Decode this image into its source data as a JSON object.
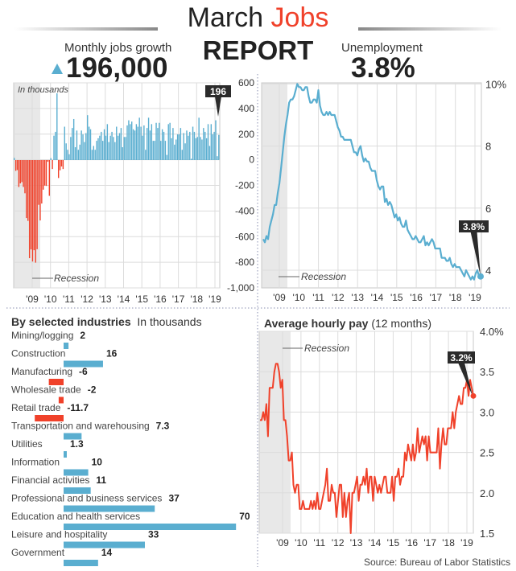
{
  "header": {
    "title_part1": "March",
    "title_part2": "Jobs",
    "title_line2": "REPORT"
  },
  "jobs_headline": {
    "label": "Monthly jobs growth",
    "value": "196,000",
    "trend_icon": "up-triangle-icon"
  },
  "unemployment_headline": {
    "label": "Unemployment",
    "value": "3.8%"
  },
  "industries_title": {
    "bold": "By selected industries",
    "light": "In thousands"
  },
  "pay_title": {
    "bold": "Average hourly pay",
    "light": "(12 months)"
  },
  "source": "Source: Bureau of Labor Statistics",
  "colors": {
    "positive": "#5aaed0",
    "negative": "#f0412a",
    "recession_shade": "#e8e8e8",
    "callout": "#2b2b2b",
    "title_accent": "#f0412a"
  },
  "chart_data": [
    {
      "id": "jobs",
      "type": "bar",
      "note": "In thousands",
      "recession_label": "Recession",
      "ylim": [
        -1000,
        600
      ],
      "yticks": [
        "600",
        "400",
        "200",
        "0",
        "-200",
        "-400",
        "-600",
        "-800",
        "-1,000"
      ],
      "xticks": [
        "'09",
        "'10",
        "'11",
        "'12",
        "'13",
        "'14",
        "'15",
        "'16",
        "'17",
        "'18",
        "'19"
      ],
      "start": "2008-01",
      "frequency": "monthly",
      "callout": "196",
      "values": [
        17,
        -84,
        -78,
        -210,
        -182,
        -172,
        -210,
        -259,
        -452,
        -474,
        -765,
        -697,
        -791,
        -703,
        -800,
        -695,
        -349,
        -471,
        -339,
        -231,
        -199,
        -202,
        -13,
        -279,
        15,
        -70,
        190,
        220,
        520,
        -140,
        -80,
        -50,
        -70,
        260,
        130,
        80,
        45,
        180,
        250,
        320,
        100,
        230,
        80,
        120,
        230,
        200,
        140,
        210,
        350,
        260,
        240,
        80,
        110,
        80,
        150,
        170,
        190,
        220,
        150,
        240,
        190,
        280,
        140,
        190,
        220,
        180,
        140,
        260,
        190,
        210,
        250,
        100,
        180,
        180,
        270,
        310,
        280,
        300,
        240,
        230,
        280,
        260,
        330,
        260,
        190,
        270,
        80,
        250,
        330,
        230,
        280,
        150,
        150,
        290,
        250,
        290,
        150,
        240,
        220,
        150,
        40,
        280,
        290,
        170,
        250,
        120,
        160,
        200,
        200,
        250,
        80,
        210,
        130,
        230,
        190,
        220,
        10,
        260,
        220,
        170,
        180,
        330,
        180,
        160,
        250,
        220,
        170,
        280,
        110,
        280,
        200,
        220,
        310,
        30,
        196
      ]
    },
    {
      "id": "unemployment",
      "type": "line",
      "recession_label": "Recession",
      "ylim": [
        3.4,
        10
      ],
      "yticks": [
        {
          "v": 10,
          "label": "10%"
        },
        {
          "v": 8,
          "label": "8"
        },
        {
          "v": 6,
          "label": "6"
        },
        {
          "v": 4,
          "label": "4"
        }
      ],
      "xticks": [
        "'09",
        "'10",
        "'11",
        "'12",
        "'13",
        "'14",
        "'15",
        "'16",
        "'17",
        "'18",
        "'19"
      ],
      "start": "2008-01",
      "frequency": "monthly",
      "callout": "3.8%",
      "values": [
        5.0,
        4.9,
        5.1,
        5.0,
        5.4,
        5.6,
        5.8,
        6.1,
        6.1,
        6.5,
        6.8,
        7.3,
        7.8,
        8.3,
        8.7,
        9.0,
        9.4,
        9.5,
        9.5,
        9.6,
        9.8,
        10.0,
        9.9,
        9.9,
        9.8,
        9.8,
        9.9,
        9.9,
        9.6,
        9.4,
        9.4,
        9.5,
        9.5,
        9.4,
        9.8,
        9.3,
        9.1,
        9.0,
        9.0,
        9.1,
        9.0,
        9.1,
        9.0,
        9.0,
        9.0,
        8.8,
        8.6,
        8.5,
        8.3,
        8.3,
        8.2,
        8.2,
        8.2,
        8.2,
        8.2,
        8.0,
        7.8,
        7.8,
        7.7,
        7.9,
        8.0,
        7.7,
        7.5,
        7.6,
        7.5,
        7.5,
        7.3,
        7.2,
        7.2,
        7.2,
        6.9,
        6.7,
        6.6,
        6.7,
        6.7,
        6.2,
        6.3,
        6.1,
        6.2,
        6.1,
        5.9,
        5.7,
        5.8,
        5.6,
        5.7,
        5.5,
        5.4,
        5.4,
        5.6,
        5.3,
        5.2,
        5.1,
        5.0,
        5.0,
        5.1,
        5.0,
        4.9,
        4.9,
        5.0,
        5.1,
        4.8,
        4.9,
        4.8,
        4.9,
        5.0,
        4.9,
        4.7,
        4.7,
        4.7,
        4.7,
        4.4,
        4.4,
        4.4,
        4.3,
        4.3,
        4.4,
        4.2,
        4.1,
        4.2,
        4.1,
        4.1,
        4.1,
        4.0,
        3.9,
        3.8,
        4.0,
        3.9,
        3.8,
        3.7,
        3.8,
        3.7,
        3.9,
        4.0,
        3.8,
        3.8
      ]
    },
    {
      "id": "industries",
      "type": "bar",
      "orientation": "horizontal",
      "categories": [
        "Mining/logging",
        "Construction",
        "Manufacturing",
        "Wholesale trade",
        "Retail trade",
        "Transportation and warehousing",
        "Utilities",
        "Information",
        "Financial activities",
        "Professional and business services",
        "Education and health services",
        "Leisure and hospitality",
        "Government"
      ],
      "values": [
        2,
        16,
        -6,
        -2,
        -11.7,
        7.3,
        1.3,
        10,
        11,
        37,
        70,
        33,
        14
      ],
      "labels": [
        "2",
        "16",
        "-6",
        "-2",
        "-11.7",
        "7.3",
        "1.3",
        "10",
        "11",
        "37",
        "70",
        "33",
        "14"
      ]
    },
    {
      "id": "hourly_pay",
      "type": "line",
      "recession_label": "Recession",
      "ylim": [
        1.5,
        4.0
      ],
      "yticks": [
        {
          "v": 4.0,
          "label": "4.0%"
        },
        {
          "v": 3.5,
          "label": "3.5"
        },
        {
          "v": 3.0,
          "label": "3.0"
        },
        {
          "v": 2.5,
          "label": "2.5"
        },
        {
          "v": 2.0,
          "label": "2.0"
        },
        {
          "v": 1.5,
          "label": "1.5"
        }
      ],
      "xticks": [
        "'09",
        "'10",
        "'11",
        "'12",
        "'13",
        "'14",
        "'15",
        "'16",
        "'17",
        "'18",
        "'19"
      ],
      "start": "2008-01",
      "frequency": "monthly",
      "callout": "3.2%",
      "values": [
        2.9,
        2.9,
        3.0,
        2.9,
        3.1,
        2.7,
        3.3,
        3.3,
        3.3,
        3.5,
        3.6,
        3.6,
        3.5,
        3.3,
        3.4,
        2.9,
        2.9,
        2.7,
        2.4,
        2.4,
        2.5,
        2.1,
        2.0,
        2.1,
        2.1,
        1.8,
        1.8,
        1.9,
        1.8,
        1.8,
        1.8,
        1.8,
        1.9,
        1.8,
        1.9,
        1.8,
        2.0,
        1.8,
        1.8,
        1.9,
        2.0,
        2.1,
        2.3,
        1.9,
        1.9,
        2.1,
        2.0,
        2.0,
        1.7,
        1.9,
        2.1,
        2.1,
        1.7,
        2.0,
        1.7,
        1.9,
        2.0,
        1.5,
        2.0,
        2.0,
        2.1,
        2.2,
        1.9,
        2.1,
        2.1,
        2.2,
        2.1,
        2.3,
        2.0,
        2.2,
        2.2,
        1.9,
        2.2,
        2.1,
        2.0,
        2.1,
        2.0,
        2.1,
        2.2,
        2.2,
        2.0,
        2.0,
        2.0,
        2.2,
        1.9,
        2.2,
        2.2,
        2.3,
        2.1,
        2.2,
        2.2,
        2.5,
        2.4,
        2.6,
        2.5,
        2.4,
        2.6,
        2.4,
        2.5,
        2.8,
        2.5,
        2.6,
        2.7,
        2.6,
        2.7,
        2.4,
        2.7,
        2.5,
        2.5,
        2.5,
        2.5,
        2.5,
        2.8,
        2.3,
        2.6,
        2.8,
        2.6,
        2.6,
        2.8,
        2.8,
        2.8,
        3.0,
        2.8,
        3.0,
        3.1,
        3.2,
        3.1,
        3.1,
        3.3,
        3.3,
        3.4,
        3.2,
        3.4,
        3.3,
        3.2
      ]
    }
  ]
}
